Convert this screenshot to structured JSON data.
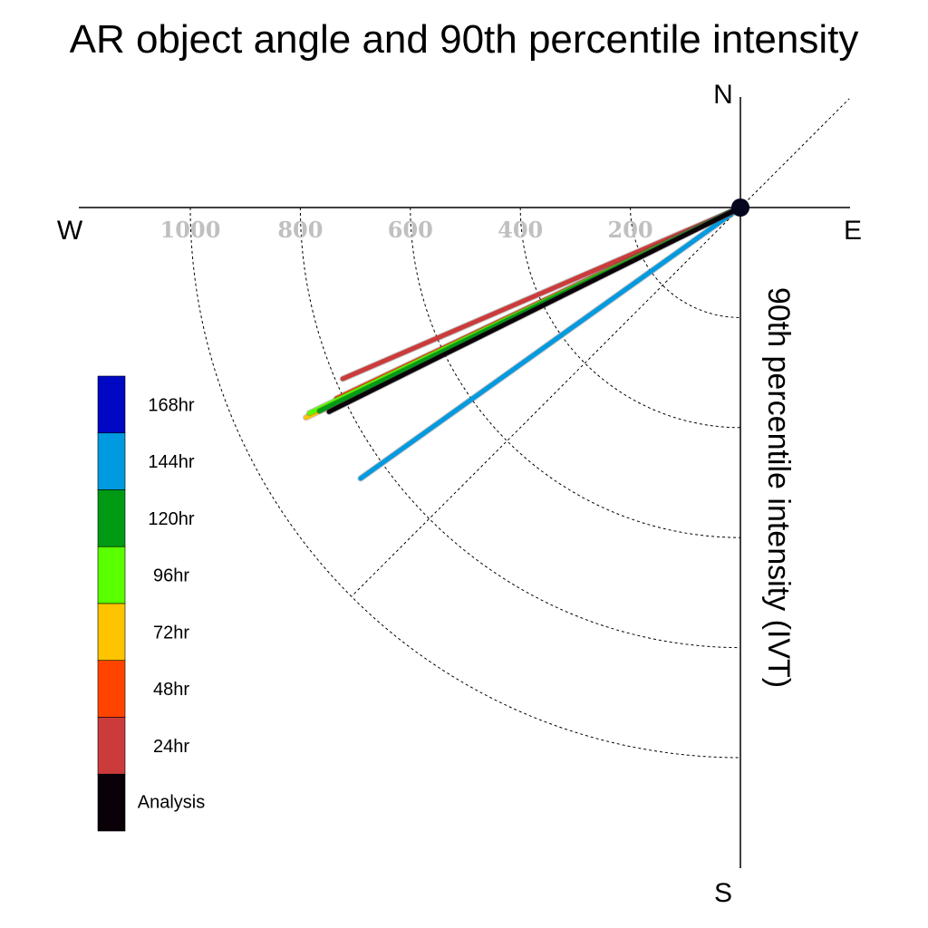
{
  "chart_data": {
    "type": "polar-line",
    "title": "AR object angle and 90th percentile intensity",
    "ylabel": "90th percentile intensity (IVT)",
    "compass": {
      "north": "N",
      "south": "S",
      "east": "E",
      "west": "W"
    },
    "radial_ticks": [
      "200",
      "400",
      "600",
      "800",
      "1000"
    ],
    "radial_tick_values": [
      200,
      400,
      600,
      800,
      1000
    ],
    "radial_max": 1000,
    "grid": true,
    "legend_position": "left",
    "series": [
      {
        "name": "Analysis",
        "color": "#0a0008",
        "angle_deg": 206.4,
        "intensity": 835
      },
      {
        "name": "24hr",
        "color": "#cc3b3b",
        "angle_deg": 203.3,
        "intensity": 787
      },
      {
        "name": "48hr",
        "color": "#ff4400",
        "angle_deg": 205.3,
        "intensity": 812
      },
      {
        "name": "72hr",
        "color": "#ffc400",
        "angle_deg": 205.8,
        "intensity": 877
      },
      {
        "name": "96hr",
        "color": "#5aff00",
        "angle_deg": 205.5,
        "intensity": 868
      },
      {
        "name": "120hr",
        "color": "#009a14",
        "angle_deg": 205.8,
        "intensity": 850
      },
      {
        "name": "144hr",
        "color": "#009ae0",
        "angle_deg": 215.5,
        "intensity": 848
      },
      {
        "name": "168hr",
        "color": "#0008c4",
        "angle_deg": null,
        "intensity": null
      }
    ]
  }
}
